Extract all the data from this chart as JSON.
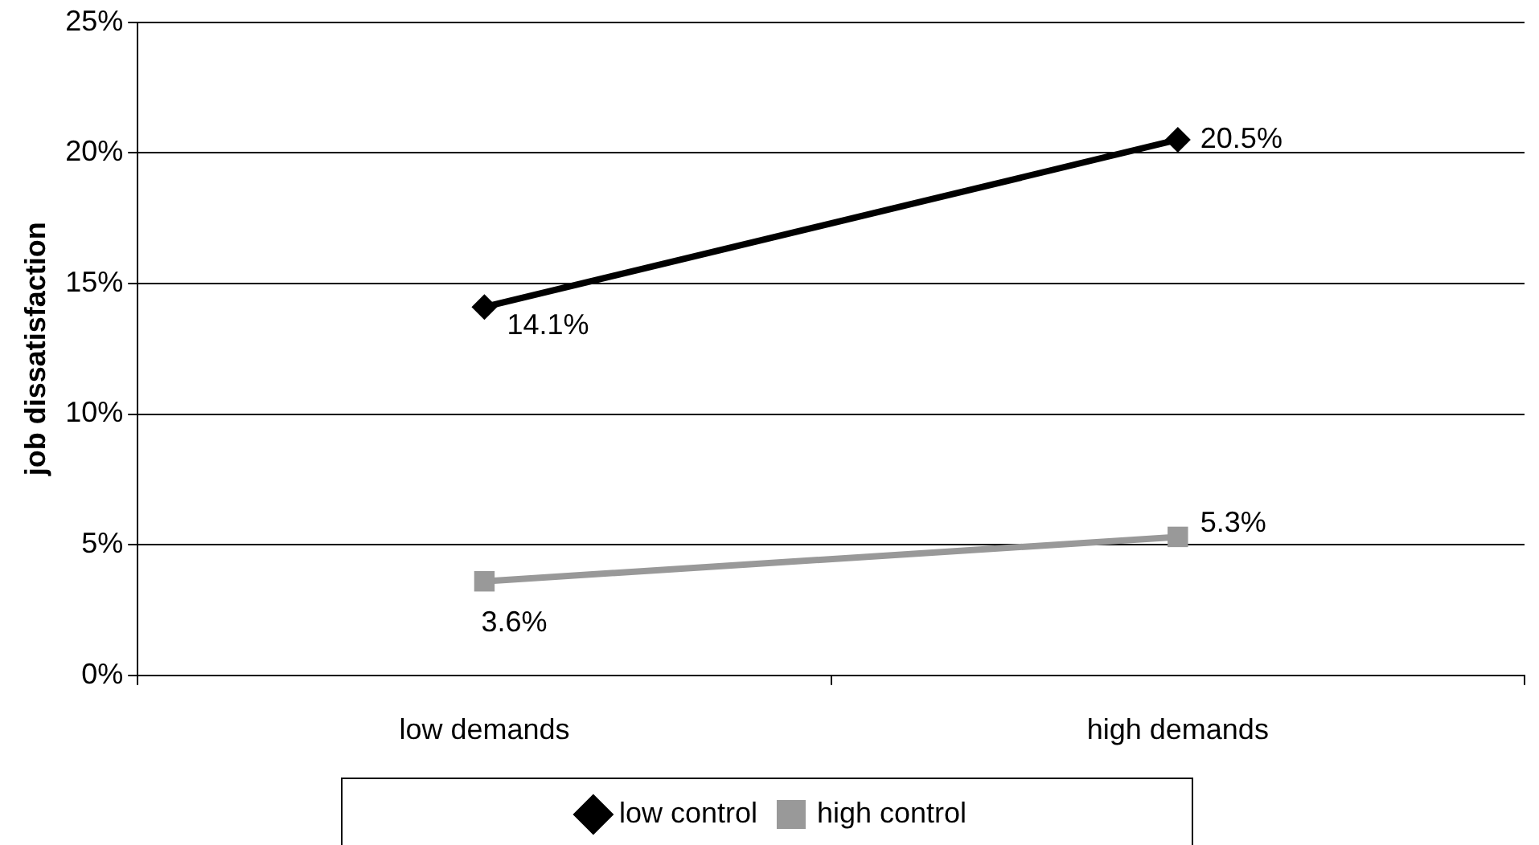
{
  "chart_data": {
    "type": "line",
    "ylabel": "job dissatisfaction",
    "categories": [
      "low demands",
      "high demands"
    ],
    "series": [
      {
        "name": "low control",
        "color": "#000000",
        "marker": "diamond",
        "values": [
          14.1,
          20.5
        ],
        "value_labels": [
          "14.1%",
          "20.5%"
        ]
      },
      {
        "name": "high control",
        "color": "#999999",
        "marker": "square",
        "values": [
          3.6,
          5.3
        ],
        "value_labels": [
          "3.6%",
          "5.3%"
        ]
      }
    ],
    "ylim": [
      0,
      25
    ],
    "yticks": [
      {
        "value": 0,
        "label": "0%"
      },
      {
        "value": 5,
        "label": "5%"
      },
      {
        "value": 10,
        "label": "10%"
      },
      {
        "value": 15,
        "label": "15%"
      },
      {
        "value": 20,
        "label": "20%"
      },
      {
        "value": 25,
        "label": "25%"
      }
    ],
    "grid": "y",
    "legend": "bottom",
    "line_style": "solid"
  }
}
